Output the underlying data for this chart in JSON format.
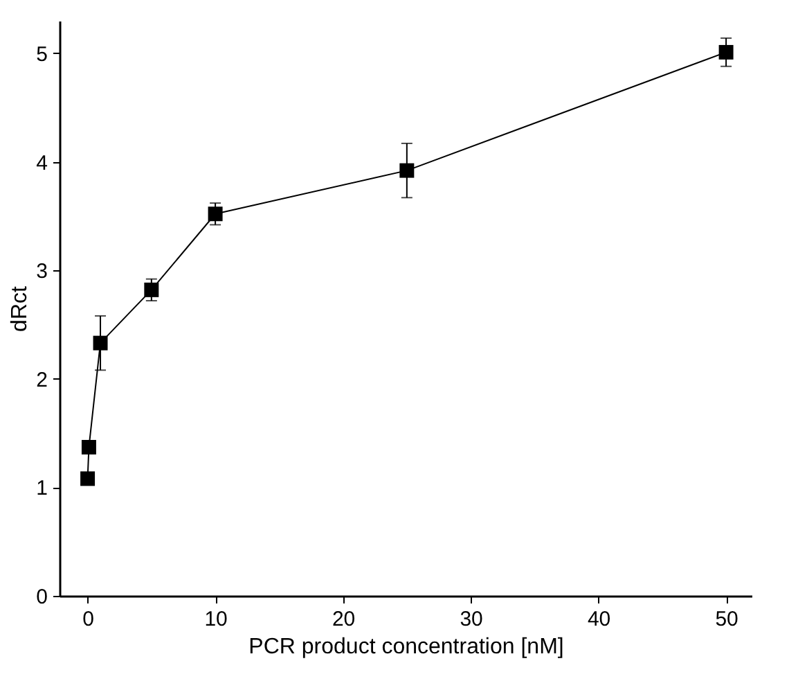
{
  "chart_data": {
    "type": "line",
    "xlabel": "PCR product concentration [nM]",
    "ylabel": "dRct",
    "x": [
      0,
      0.1,
      1,
      5,
      10,
      25,
      50
    ],
    "series": [
      {
        "color": "#000000",
        "values": [
          1.08,
          1.37,
          2.33,
          2.82,
          3.52,
          3.92,
          5.01
        ],
        "errors": [
          null,
          null,
          0.25,
          0.1,
          0.1,
          0.25,
          0.13
        ]
      }
    ],
    "xlim": [
      -2.2,
      52
    ],
    "ylim": [
      0,
      5.3
    ],
    "xticks": [
      0,
      10,
      20,
      30,
      40,
      50
    ],
    "yticks": [
      0,
      1,
      2,
      3,
      4,
      5
    ],
    "grid": false,
    "marker": "square",
    "line_style": "solid"
  }
}
